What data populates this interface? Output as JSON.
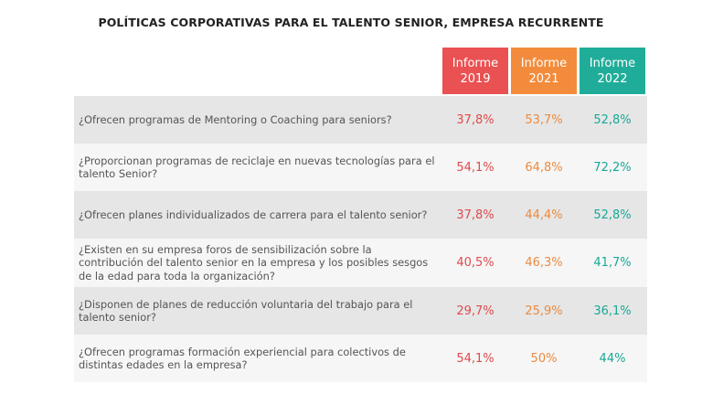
{
  "chart_data": {
    "type": "table",
    "title": "POLÍTICAS CORPORATIVAS PARA EL TALENTO SENIOR, EMPRESA RECURRENTE",
    "columns": [
      {
        "label_line1": "Informe",
        "label_line2": "2019",
        "color": "#e95152"
      },
      {
        "label_line1": "Informe",
        "label_line2": "2021",
        "color": "#f28c3c"
      },
      {
        "label_line1": "Informe",
        "label_line2": "2022",
        "color": "#1fad9a"
      }
    ],
    "rows": [
      {
        "question": "¿Ofrecen programas de Mentoring o Coaching para seniors?",
        "values": [
          "37,8%",
          "53,7%",
          "52,8%"
        ]
      },
      {
        "question": "¿Proporcionan programas de reciclaje en nuevas tecnologías para el talento Senior?",
        "values": [
          "54,1%",
          "64,8%",
          "72,2%"
        ]
      },
      {
        "question": "¿Ofrecen planes individualizados de carrera para el talento senior?",
        "values": [
          "37,8%",
          "44,4%",
          "52,8%"
        ]
      },
      {
        "question": "¿Existen en su empresa foros de sensibilización sobre la contribución del talento senior en la empresa y los posibles sesgos de la edad para toda la organización?",
        "values": [
          "40,5%",
          "46,3%",
          "41,7%"
        ]
      },
      {
        "question": "¿Disponen de planes de reducción voluntaria del trabajo para el talento senior?",
        "values": [
          "29,7%",
          "25,9%",
          "36,1%"
        ]
      },
      {
        "question": "¿Ofrecen programas formación experiencial para colectivos de distintas edades en la empresa?",
        "values": [
          "54,1%",
          "50%",
          "44%"
        ]
      }
    ]
  }
}
